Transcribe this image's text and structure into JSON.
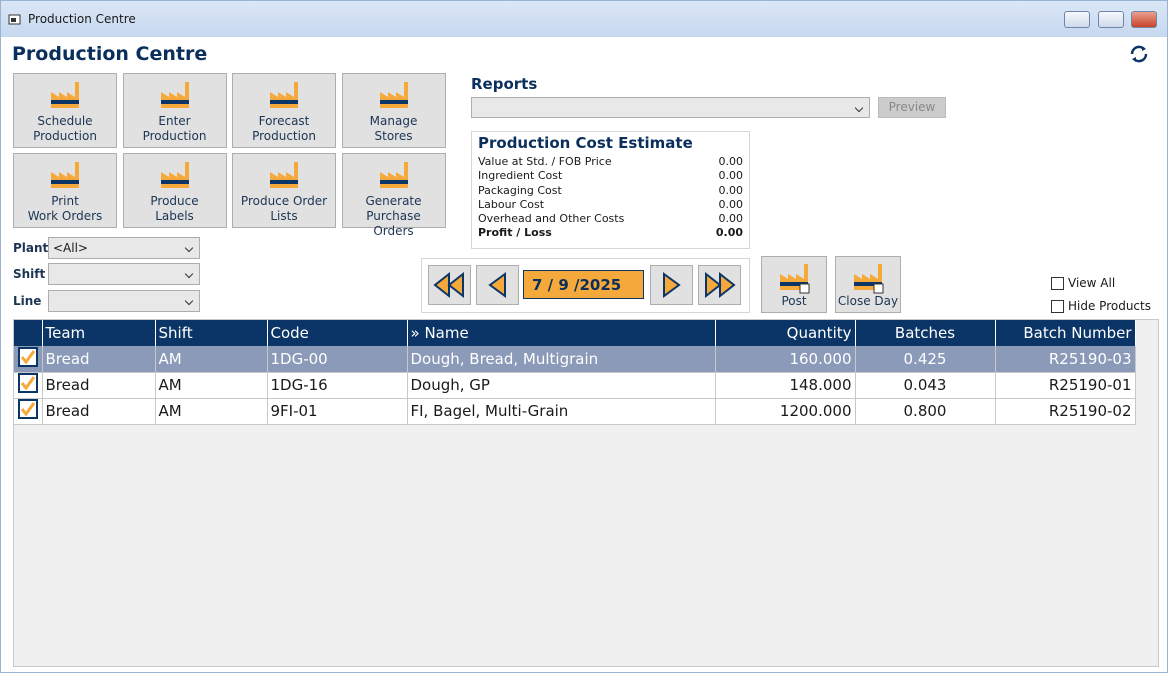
{
  "window": {
    "title": "Production Centre"
  },
  "header": {
    "title": "Production Centre"
  },
  "tiles": [
    {
      "lines": [
        "Schedule",
        "Production"
      ]
    },
    {
      "lines": [
        "Enter",
        "Production"
      ]
    },
    {
      "lines": [
        "Forecast",
        "Production"
      ]
    },
    {
      "lines": [
        "Manage",
        "Stores"
      ]
    },
    {
      "lines": [
        "Print",
        "Work Orders"
      ]
    },
    {
      "lines": [
        "Produce",
        "Labels"
      ]
    },
    {
      "lines": [
        "Produce Order",
        "Lists"
      ]
    },
    {
      "lines": [
        "Generate Purchase",
        "Orders"
      ]
    }
  ],
  "filters": [
    {
      "label": "Plant",
      "value": "<All>"
    },
    {
      "label": "Shift"
    },
    {
      "label": "Line"
    }
  ],
  "reports": {
    "label": "Reports",
    "preview": "Preview"
  },
  "cost_estimate": {
    "title": "Production Cost Estimate",
    "rows": [
      [
        "Value at Std. / FOB Price",
        "0.00"
      ],
      [
        "Ingredient Cost",
        "0.00"
      ],
      [
        "Packaging Cost",
        "0.00"
      ],
      [
        "Labour Cost",
        "0.00"
      ],
      [
        "Overhead and Other Costs",
        "0.00"
      ],
      [
        "Profit / Loss",
        "0.00"
      ]
    ]
  },
  "date": "7 / 9 /2025",
  "actions": [
    "Post",
    "Close Day"
  ],
  "options": [
    "View All",
    "Hide Products"
  ],
  "table": {
    "columns": [
      "Team",
      "Shift",
      "Code",
      "» Name",
      "Quantity",
      "Batches",
      "Batch Number"
    ],
    "rows": [
      [
        "Bread",
        "AM",
        "1DG-00",
        "Dough, Bread, Multigrain",
        "160.000",
        "0.425",
        "R25190-03"
      ],
      [
        "Bread",
        "AM",
        "1DG-16",
        "Dough, GP",
        "148.000",
        "0.043",
        "R25190-01"
      ],
      [
        "Bread",
        "AM",
        "9FI-01",
        "FI, Bagel, Multi-Grain",
        "1200.000",
        "0.800",
        "R25190-02"
      ]
    ]
  }
}
